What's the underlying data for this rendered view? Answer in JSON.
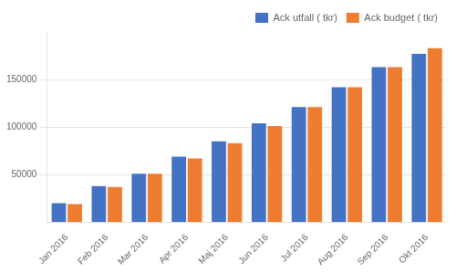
{
  "chart_data": {
    "type": "bar",
    "categories": [
      "Jan 2016",
      "Feb 2016",
      "Mar 2016",
      "Apr 2016",
      "Maj 2016",
      "Jun 2016",
      "Jul 2016",
      "Aug 2016",
      "Sep 2016",
      "Okt 2016"
    ],
    "series": [
      {
        "name": "Ack utfall ( tkr)",
        "color": "#4472C4",
        "values": [
          20000,
          38000,
          51000,
          69000,
          85000,
          104000,
          121000,
          142000,
          163000,
          177000
        ]
      },
      {
        "name": "Ack budget ( tkr)",
        "color": "#ED7D31",
        "values": [
          19000,
          37000,
          51000,
          67000,
          83000,
          101000,
          121000,
          142000,
          163000,
          183000
        ]
      }
    ],
    "ylim": [
      0,
      200000
    ],
    "yticks": [
      50000,
      100000,
      150000
    ],
    "grid": true,
    "legend": "upper right"
  }
}
